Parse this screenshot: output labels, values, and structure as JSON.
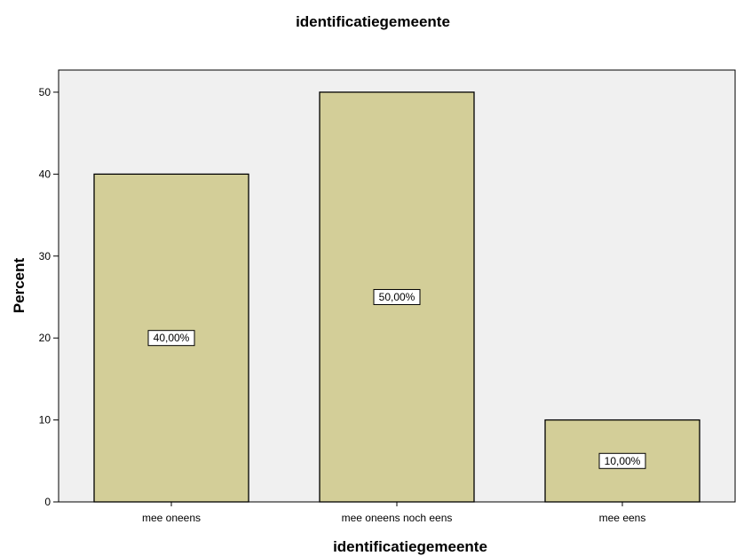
{
  "chart_data": {
    "type": "bar",
    "title": "identificatiegemeente",
    "xlabel": "identificatiegemeente",
    "ylabel": "Percent",
    "categories": [
      "mee oneens",
      "mee oneens noch eens",
      "mee eens"
    ],
    "values": [
      40,
      50,
      10
    ],
    "data_labels": [
      "40,00%",
      "50,00%",
      "10,00%"
    ],
    "ylim": [
      0,
      52.7
    ],
    "yticks": [
      0,
      10,
      20,
      30,
      40,
      50
    ],
    "grid": false,
    "colors": {
      "plot_background": "#f0f0f0",
      "bar_fill": "#d3ce98",
      "bar_stroke": "#000000"
    }
  }
}
